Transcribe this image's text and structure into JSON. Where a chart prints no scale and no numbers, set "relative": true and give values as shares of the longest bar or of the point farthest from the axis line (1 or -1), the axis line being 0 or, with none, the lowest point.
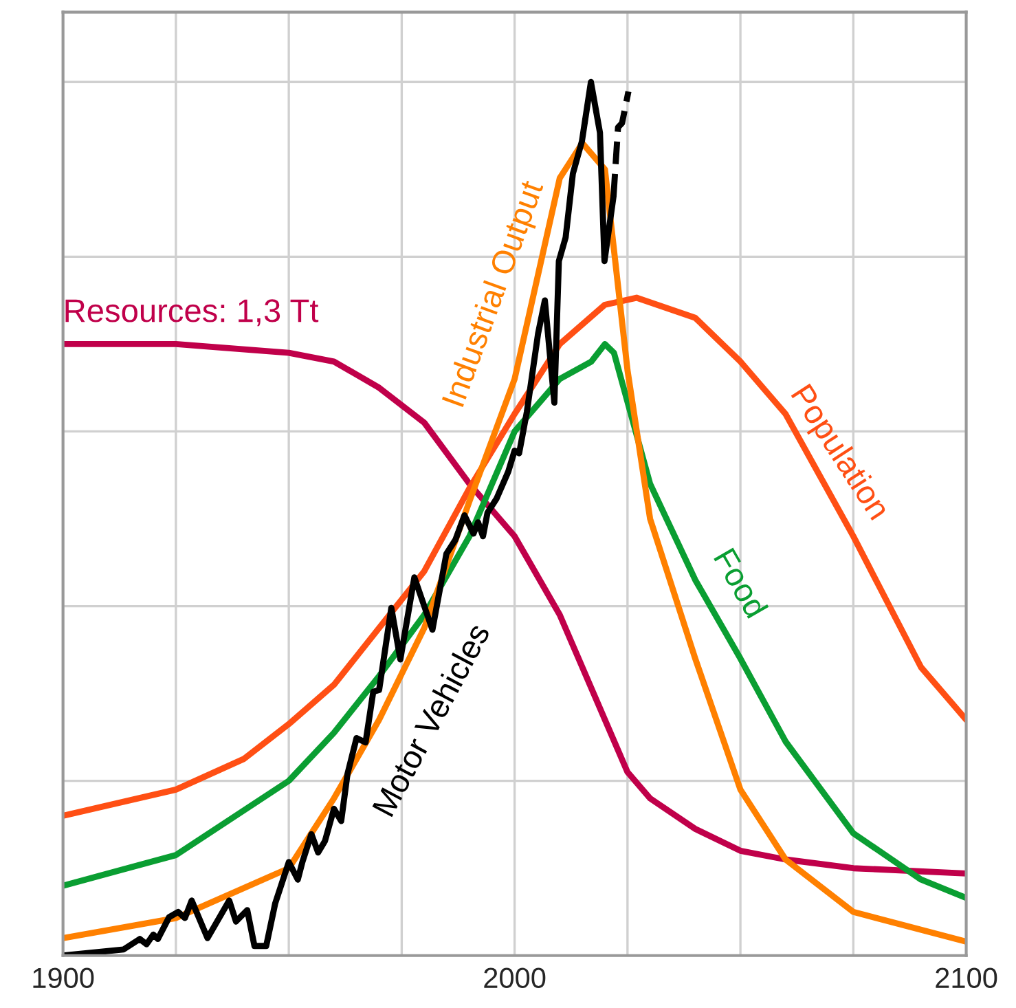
{
  "chart_data": {
    "type": "line",
    "relative": true,
    "grid": true,
    "legend": false,
    "marker": "none",
    "xlim": [
      1900,
      2100
    ],
    "xticks": [
      1900,
      {
        "value": 1925,
        "label": null
      },
      {
        "value": 1950,
        "label": null
      },
      {
        "value": 1975,
        "label": null
      },
      2000,
      {
        "value": 2025,
        "label": null
      },
      {
        "value": 2050,
        "label": null
      },
      {
        "value": 2075,
        "label": null
      },
      2100
    ],
    "series": [
      {
        "name": "Resources: 1,3 Tt",
        "color": "#c0004a",
        "line_style": "solid",
        "x": [
          1900,
          1925,
          1950,
          1960,
          1970,
          1980,
          1990,
          2000,
          2010,
          2020,
          2025,
          2030,
          2040,
          2050,
          2060,
          2075,
          2100
        ],
        "values": [
          0.7,
          0.7,
          0.69,
          0.68,
          0.65,
          0.61,
          0.54,
          0.48,
          0.39,
          0.27,
          0.21,
          0.18,
          0.145,
          0.12,
          0.11,
          0.1,
          0.094
        ]
      },
      {
        "name": "Population",
        "color": "#ff4f14",
        "line_style": "solid",
        "x": [
          1900,
          1925,
          1940,
          1950,
          1960,
          1970,
          1980,
          1990,
          2000,
          2010,
          2020,
          2027,
          2040,
          2050,
          2060,
          2075,
          2090,
          2100
        ],
        "values": [
          0.16,
          0.19,
          0.225,
          0.265,
          0.31,
          0.375,
          0.44,
          0.535,
          0.62,
          0.7,
          0.745,
          0.753,
          0.73,
          0.68,
          0.62,
          0.48,
          0.33,
          0.27
        ]
      },
      {
        "name": "Food",
        "color": "#0a9e32",
        "line_style": "solid",
        "x": [
          1900,
          1925,
          1950,
          1960,
          1970,
          1980,
          1990,
          2000,
          2010,
          2017,
          2020,
          2022,
          2030,
          2040,
          2050,
          2060,
          2075,
          2090,
          2100
        ],
        "values": [
          0.08,
          0.115,
          0.2,
          0.255,
          0.32,
          0.39,
          0.48,
          0.6,
          0.66,
          0.68,
          0.7,
          0.69,
          0.54,
          0.43,
          0.34,
          0.245,
          0.14,
          0.087,
          0.066
        ]
      },
      {
        "name": "Industrial Output",
        "color": "#ff8000",
        "line_style": "solid",
        "x": [
          1900,
          1925,
          1950,
          1960,
          1970,
          1980,
          1990,
          2000,
          2010,
          2015,
          2020,
          2025,
          2030,
          2040,
          2050,
          2060,
          2075,
          2100
        ],
        "values": [
          0.02,
          0.043,
          0.1,
          0.18,
          0.27,
          0.375,
          0.52,
          0.66,
          0.89,
          0.93,
          0.9,
          0.67,
          0.5,
          0.34,
          0.19,
          0.11,
          0.05,
          0.016
        ]
      },
      {
        "name": "Motor Vehicles",
        "color": "#000000",
        "line_style": "solid",
        "x": [
          1900,
          1913.4,
          1917,
          1918.5,
          1920,
          1921,
          1923.5,
          1925.5,
          1927,
          1928.5,
          1932,
          1936.8,
          1938.3,
          1940.8,
          1942.4,
          1945,
          1947,
          1950,
          1952,
          1953,
          1955,
          1956.5,
          1958,
          1960,
          1961.6,
          1963,
          1965,
          1967,
          1968.7,
          1970,
          1972.7,
          1974.7,
          1977.8,
          1981.8,
          1984.9,
          1986.9,
          1988.9,
          1990.9,
          1991.9,
          1993,
          1994,
          1996,
          1998.6,
          2000,
          2001,
          2002.7,
          2005.2,
          2006.7,
          2008.8,
          2009.8,
          2011.3,
          2012.9,
          2014.9,
          2016.9,
          2018.9,
          2019.9,
          2021.9
        ],
        "values": [
          0,
          0.007,
          0.019,
          0.013,
          0.024,
          0.019,
          0.044,
          0.05,
          0.043,
          0.063,
          0.02,
          0.063,
          0.039,
          0.052,
          0.011,
          0.011,
          0.06,
          0.107,
          0.087,
          0.107,
          0.139,
          0.118,
          0.131,
          0.168,
          0.154,
          0.208,
          0.249,
          0.244,
          0.302,
          0.304,
          0.398,
          0.339,
          0.433,
          0.373,
          0.46,
          0.476,
          0.504,
          0.483,
          0.496,
          0.48,
          0.507,
          0.523,
          0.554,
          0.578,
          0.575,
          0.622,
          0.712,
          0.75,
          0.633,
          0.795,
          0.822,
          0.895,
          0.932,
          1.0,
          0.942,
          0.795,
          0.869
        ]
      },
      {
        "color": "#000000",
        "line_style": "dashed",
        "x": [
          2021.9,
          2022.9,
          2023.8,
          2025.2
        ],
        "values": [
          0.869,
          0.948,
          0.953,
          0.989
        ]
      }
    ]
  }
}
